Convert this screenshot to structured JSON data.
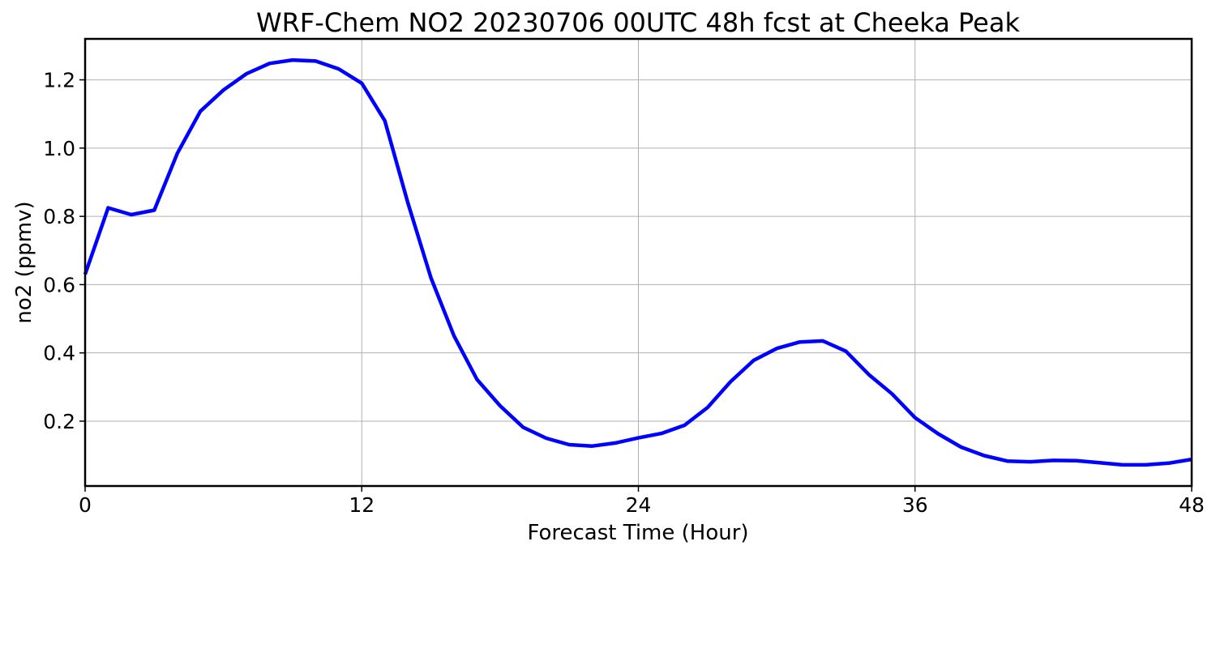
{
  "chart_data": {
    "type": "line",
    "title": "WRF-Chem NO2  20230706 00UTC 48h fcst at Cheeka Peak",
    "xlabel": "Forecast Time (Hour)",
    "ylabel": "no2  (ppmv)",
    "xlim": [
      0,
      48
    ],
    "ylim": [
      0.01,
      1.32
    ],
    "xticks": [
      0,
      12,
      24,
      36,
      48
    ],
    "xtick_labels": [
      "0",
      "12",
      "24",
      "36",
      "48"
    ],
    "yticks": [
      0.2,
      0.4,
      0.6,
      0.8,
      1.0,
      1.2
    ],
    "ytick_labels": [
      "0.2",
      "0.4",
      "0.6",
      "0.8",
      "1.0",
      "1.2"
    ],
    "grid": true,
    "series": [
      {
        "color": "#0000ff",
        "x": [
          0,
          1,
          2,
          3,
          4,
          5,
          6,
          7,
          8,
          9,
          10,
          11,
          12,
          13,
          14,
          15,
          16,
          17,
          18,
          19,
          20,
          21,
          22,
          23,
          24,
          25,
          26,
          27,
          28,
          29,
          30,
          31,
          32,
          33,
          34,
          35,
          36,
          37,
          38,
          39,
          40,
          41,
          42,
          43,
          44,
          45,
          46,
          47,
          48
        ],
        "y": [
          0.63,
          0.825,
          0.805,
          0.818,
          0.985,
          1.108,
          1.17,
          1.218,
          1.248,
          1.258,
          1.255,
          1.232,
          1.19,
          1.08,
          0.84,
          0.62,
          0.45,
          0.322,
          0.245,
          0.182,
          0.15,
          0.131,
          0.127,
          0.136,
          0.151,
          0.164,
          0.188,
          0.24,
          0.316,
          0.378,
          0.413,
          0.432,
          0.435,
          0.405,
          0.336,
          0.28,
          0.21,
          0.163,
          0.124,
          0.099,
          0.083,
          0.081,
          0.085,
          0.084,
          0.078,
          0.072,
          0.072,
          0.077,
          0.088
        ]
      }
    ]
  }
}
